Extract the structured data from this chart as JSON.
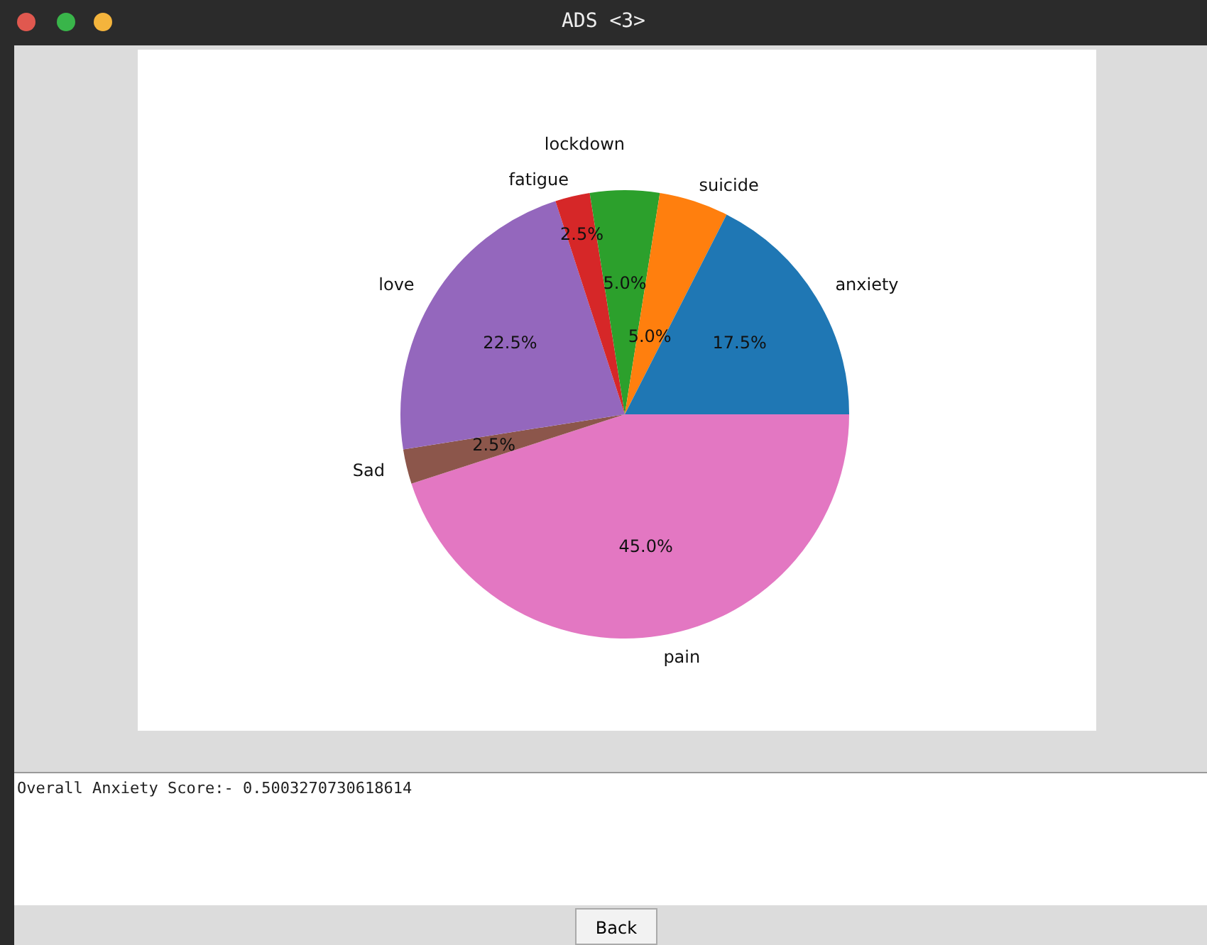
{
  "chart_data": {
    "type": "pie",
    "title": "ADS <3>",
    "categories": [
      "anxiety",
      "suicide",
      "lockdown",
      "fatigue",
      "love",
      "Sad",
      "pain"
    ],
    "values": [
      17.5,
      5.0,
      5.0,
      2.5,
      22.5,
      2.5,
      45.0
    ],
    "value_labels": [
      "17.5%",
      "5.0%",
      "5.0%",
      "2.5%",
      "22.5%",
      "2.5%",
      "45.0%"
    ],
    "colors": [
      "#1f77b4",
      "#ff7f0e",
      "#2ca02c",
      "#d62728",
      "#9467bd",
      "#8c564b",
      "#e377c2"
    ],
    "legend": false,
    "annotations": [
      "Overall Anxiety Score:- 0.5003270730618614",
      "Back"
    ]
  }
}
